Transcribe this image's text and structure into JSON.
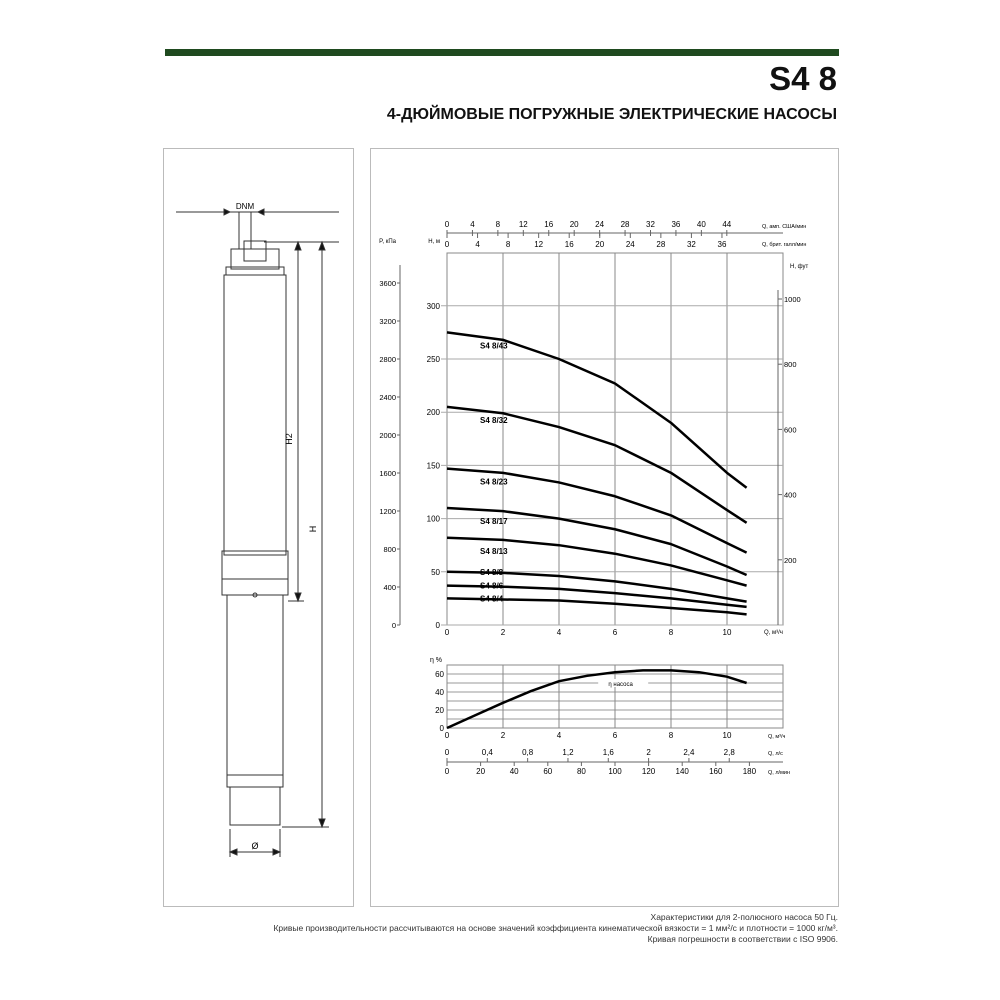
{
  "header": {
    "title": "S4 8",
    "subtitle": "4-ДЮЙМОВЫЕ ПОГРУЖНЫЕ ЭЛЕКТРИЧЕСКИЕ НАСОСЫ",
    "accent_color": "#1f4a1f"
  },
  "drawing": {
    "dnm_label": "DNM",
    "h2_label": "H2",
    "h_label": "H",
    "diameter_label": "Ø"
  },
  "notes": [
    "Характеристики для 2-полюсного насоса 50 Гц.",
    "Кривые производительности рассчитываются на основе значений коэффициента кинематической вязкости = 1 мм²/с и плотности = 1000 кг/м³.",
    "Кривая погрешности в соответствии с ISO 9906."
  ],
  "chart_data": [
    {
      "type": "line",
      "xlabel": "Q, м³/ч",
      "ylabel": "H, м",
      "y2label": "P, кПа",
      "y3label": "H, фут",
      "top_axis1_label": "Q, амп. США/мин",
      "top_axis2_label": "Q, брит. галл/мин",
      "xlim": [
        0,
        12
      ],
      "ylim": [
        0,
        320
      ],
      "x_ticks": [
        0,
        2,
        4,
        6,
        8,
        10
      ],
      "y_ticks": [
        0,
        50,
        100,
        150,
        200,
        250,
        300
      ],
      "p_ticks": [
        0,
        400,
        800,
        1200,
        1600,
        2000,
        2400,
        2800,
        3200,
        3600
      ],
      "ft_ticks": [
        200,
        400,
        600,
        800,
        1000
      ],
      "top_axis1_ticks": [
        0,
        4,
        8,
        12,
        16,
        20,
        24,
        28,
        32,
        36,
        40,
        44
      ],
      "top_axis2_ticks": [
        0,
        4,
        8,
        12,
        16,
        20,
        24,
        28,
        32,
        36
      ],
      "grid": true,
      "x": [
        0,
        2,
        4,
        6,
        8,
        10,
        10.7
      ],
      "series": [
        {
          "name": "S4 8/43",
          "values": [
            275,
            268,
            250,
            227,
            190,
            143,
            129
          ]
        },
        {
          "name": "S4 8/32",
          "values": [
            205,
            199,
            186,
            169,
            143,
            108,
            96
          ]
        },
        {
          "name": "S4 8/23",
          "values": [
            147,
            143,
            134,
            121,
            103,
            77,
            68
          ]
        },
        {
          "name": "S4 8/17",
          "values": [
            110,
            107,
            100,
            90,
            76,
            55,
            47
          ]
        },
        {
          "name": "S4 8/13",
          "values": [
            82,
            80,
            75,
            67,
            56,
            42,
            37
          ]
        },
        {
          "name": "S4 8/8",
          "values": [
            50,
            49,
            46,
            41,
            34,
            25,
            22
          ]
        },
        {
          "name": "S4 8/6",
          "values": [
            37,
            36,
            34,
            30,
            25,
            19,
            17
          ]
        },
        {
          "name": "S4 8/4",
          "values": [
            25,
            24,
            23,
            20,
            16,
            12,
            10
          ]
        }
      ]
    },
    {
      "type": "line",
      "ylabel": "η %",
      "xlabel": "Q, м³/ч",
      "x2label": "Q, л/с",
      "x3label": "Q, л/мин",
      "xlim": [
        0,
        12
      ],
      "ylim": [
        0,
        70
      ],
      "x_ticks": [
        0,
        2,
        4,
        6,
        8,
        10
      ],
      "y_ticks": [
        0,
        20,
        40,
        60
      ],
      "x2_ticks": [
        "0",
        "0,4",
        "0,8",
        "1,2",
        "1,6",
        "2",
        "2,4",
        "2,8"
      ],
      "x3_ticks": [
        0,
        20,
        40,
        60,
        80,
        100,
        120,
        140,
        160,
        180
      ],
      "grid": true,
      "x": [
        0,
        1,
        2,
        3,
        4,
        5,
        6,
        7,
        8,
        9,
        10,
        10.7
      ],
      "series": [
        {
          "name": "η насоса",
          "values": [
            0,
            14,
            28,
            41,
            52,
            58,
            62,
            64,
            64,
            62,
            57,
            50
          ]
        }
      ]
    }
  ]
}
